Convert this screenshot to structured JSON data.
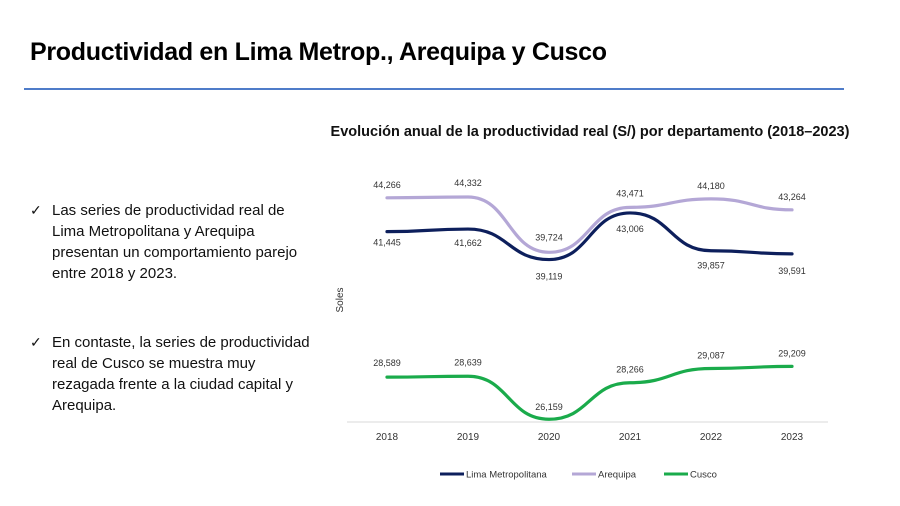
{
  "page": {
    "title": "Productividad en Lima Metrop., Arequipa y Cusco",
    "bullets": [
      "Las series de productividad real de Lima Metropolitana y Arequipa presentan un comportamiento parejo entre 2018 y 2023.",
      "En contaste, la series de productividad real de Cusco se muestra muy rezagada frente a la ciudad capital y Arequipa."
    ],
    "bullet_icon": "check-icon",
    "accent_color": "#4f7cc9"
  },
  "chart_data": {
    "type": "line",
    "title": "Evolución anual de la productividad real (S/) por departamento (2018–2023)",
    "xlabel": "",
    "ylabel": "Soles",
    "x": [
      "2018",
      "2019",
      "2020",
      "2021",
      "2022",
      "2023"
    ],
    "series": [
      {
        "name": "Lima Metropolitana",
        "color": "#0d1f5c",
        "values": [
          41445,
          41662,
          39119,
          43006,
          39857,
          39591
        ],
        "labels": [
          "41,445",
          "41,662",
          "39,119",
          "43,006",
          "39,857",
          "39,591"
        ]
      },
      {
        "name": "Arequipa",
        "color": "#b4a7d6",
        "values": [
          44266,
          44332,
          39724,
          43471,
          44180,
          43264
        ],
        "labels": [
          "44,266",
          "44,332",
          "39,724",
          "43,471",
          "44,180",
          "43,264"
        ]
      },
      {
        "name": "Cusco",
        "color": "#1aab4b",
        "values": [
          28589,
          28639,
          26159,
          28266,
          29087,
          29209
        ],
        "labels": [
          "28,589",
          "28,639",
          "26,159",
          "28,266",
          "29,087",
          "29,209"
        ]
      }
    ],
    "grid": false,
    "legend": "bottom",
    "y_axis_break": true
  }
}
